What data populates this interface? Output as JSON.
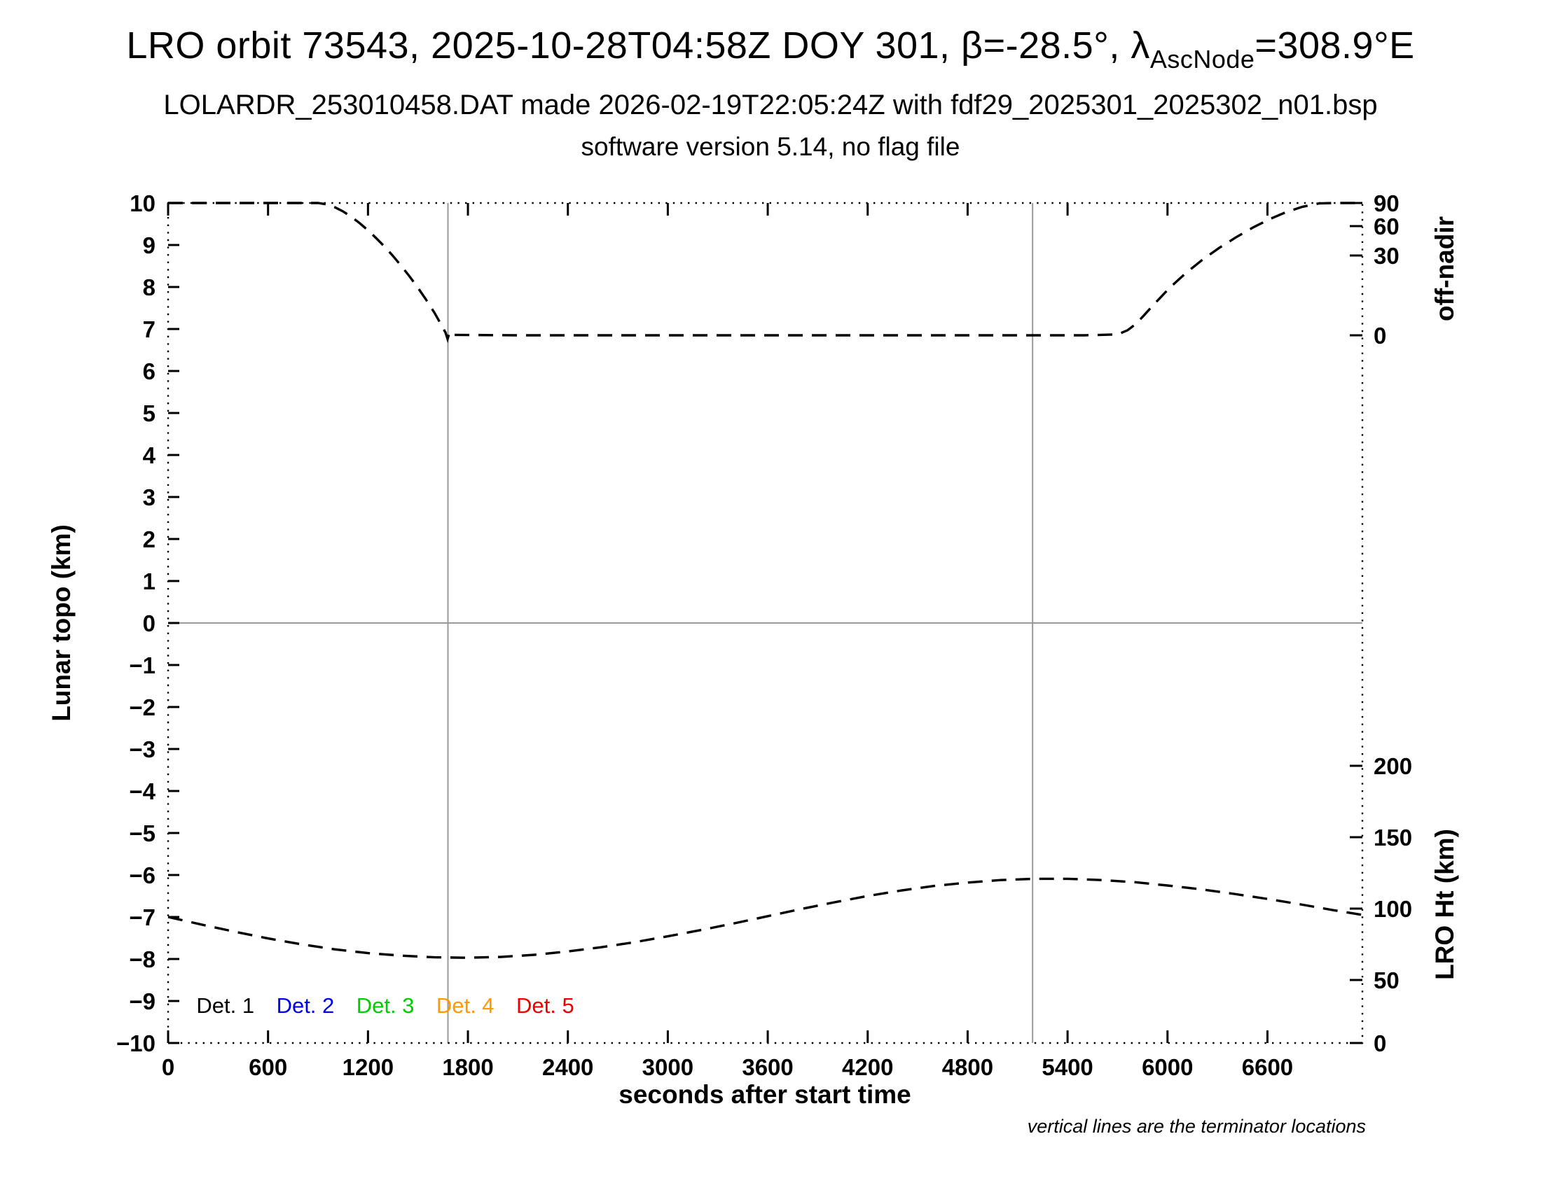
{
  "header": {
    "title_parts": {
      "prefix": "LRO orbit 73543, 2025-10-28T04:58Z DOY 301, β=-28.5°, λ",
      "subscript": "AscNode",
      "suffix": "=308.9°E"
    },
    "subtitle1": "LOLARDR_253010458.DAT made 2026-02-19T22:05:24Z with fdf29_2025301_2025302_n01.bsp",
    "subtitle2": "software version 5.14, no flag file"
  },
  "chart_data": {
    "type": "line",
    "title": "LRO orbit 73543, 2025-10-28T04:58Z DOY 301, β=-28.5°, λAscNode=308.9°E",
    "xlabel": "seconds after start time",
    "ylabel_left": "Lunar topo (km)",
    "ylabel_right_top": "off-nadir",
    "ylabel_right_bottom": "LRO Ht (km)",
    "footnote": "vertical lines are the terminator locations",
    "xlim": [
      0,
      7170
    ],
    "ylim": [
      -10,
      10
    ],
    "x_major_ticks": [
      0,
      600,
      1200,
      1800,
      2400,
      3000,
      3600,
      4200,
      4800,
      5400,
      6000,
      6600
    ],
    "y_major_ticks": [
      -10,
      -9,
      -8,
      -7,
      -6,
      -5,
      -4,
      -3,
      -2,
      -1,
      0,
      1,
      2,
      3,
      4,
      5,
      6,
      7,
      8,
      9,
      10
    ],
    "right_axis_offnadir_ticks": [
      {
        "label": "90",
        "y": 10
      },
      {
        "label": "60",
        "y": 9.45
      },
      {
        "label": "30",
        "y": 8.75
      },
      {
        "label": "0",
        "y": 6.85
      }
    ],
    "right_axis_lroht_ticks": [
      {
        "label": "200",
        "y": -3.4
      },
      {
        "label": "150",
        "y": -5.1
      },
      {
        "label": "100",
        "y": -6.8
      },
      {
        "label": "50",
        "y": -8.5
      },
      {
        "label": "0",
        "y": -10
      }
    ],
    "zero_line_y": 0,
    "terminator_lines_x": [
      1680,
      5190
    ],
    "series": [
      {
        "name": "off-nadir-angle-curve",
        "axis": "right-top (off-nadir, deg; 90 at topo 10, 0 at topo 6.85)",
        "color": "#000000",
        "style": "dashed",
        "points": [
          [
            0,
            10
          ],
          [
            300,
            10
          ],
          [
            600,
            10
          ],
          [
            900,
            10
          ],
          [
            950,
            9.97
          ],
          [
            1000,
            9.9
          ],
          [
            1050,
            9.8
          ],
          [
            1100,
            9.67
          ],
          [
            1150,
            9.52
          ],
          [
            1200,
            9.35
          ],
          [
            1250,
            9.16
          ],
          [
            1300,
            8.96
          ],
          [
            1350,
            8.74
          ],
          [
            1400,
            8.5
          ],
          [
            1450,
            8.25
          ],
          [
            1500,
            7.98
          ],
          [
            1550,
            7.69
          ],
          [
            1600,
            7.38
          ],
          [
            1640,
            7.1
          ],
          [
            1665,
            6.92
          ],
          [
            1678,
            6.76
          ],
          [
            1690,
            6.93
          ],
          [
            1710,
            6.86
          ],
          [
            2100,
            6.85
          ],
          [
            2600,
            6.85
          ],
          [
            3100,
            6.85
          ],
          [
            3600,
            6.85
          ],
          [
            4100,
            6.85
          ],
          [
            4600,
            6.85
          ],
          [
            5100,
            6.85
          ],
          [
            5500,
            6.85
          ],
          [
            5700,
            6.87
          ],
          [
            5760,
            6.97
          ],
          [
            5810,
            7.12
          ],
          [
            5860,
            7.33
          ],
          [
            5910,
            7.55
          ],
          [
            5960,
            7.76
          ],
          [
            6010,
            7.97
          ],
          [
            6110,
            8.33
          ],
          [
            6210,
            8.65
          ],
          [
            6310,
            8.93
          ],
          [
            6410,
            9.18
          ],
          [
            6510,
            9.41
          ],
          [
            6610,
            9.61
          ],
          [
            6710,
            9.78
          ],
          [
            6810,
            9.91
          ],
          [
            6910,
            9.99
          ],
          [
            7000,
            10
          ],
          [
            7170,
            10
          ]
        ]
      },
      {
        "name": "lro-height-curve",
        "axis": "right-bottom (LRO Ht, km; 0 at topo -10, 200 at topo -3.4)",
        "color": "#000000",
        "style": "dashed",
        "points": [
          [
            0,
            -7.0
          ],
          [
            200,
            -7.18
          ],
          [
            400,
            -7.35
          ],
          [
            600,
            -7.51
          ],
          [
            800,
            -7.65
          ],
          [
            1000,
            -7.77
          ],
          [
            1200,
            -7.86
          ],
          [
            1400,
            -7.92
          ],
          [
            1600,
            -7.96
          ],
          [
            1800,
            -7.97
          ],
          [
            2000,
            -7.95
          ],
          [
            2200,
            -7.9
          ],
          [
            2400,
            -7.82
          ],
          [
            2600,
            -7.72
          ],
          [
            2800,
            -7.6
          ],
          [
            3000,
            -7.46
          ],
          [
            3200,
            -7.31
          ],
          [
            3400,
            -7.15
          ],
          [
            3600,
            -6.98
          ],
          [
            3800,
            -6.81
          ],
          [
            4000,
            -6.65
          ],
          [
            4200,
            -6.5
          ],
          [
            4400,
            -6.37
          ],
          [
            4600,
            -6.26
          ],
          [
            4800,
            -6.18
          ],
          [
            5000,
            -6.12
          ],
          [
            5200,
            -6.09
          ],
          [
            5400,
            -6.09
          ],
          [
            5600,
            -6.12
          ],
          [
            5800,
            -6.17
          ],
          [
            6000,
            -6.25
          ],
          [
            6200,
            -6.34
          ],
          [
            6400,
            -6.45
          ],
          [
            6600,
            -6.57
          ],
          [
            6800,
            -6.7
          ],
          [
            7000,
            -6.84
          ],
          [
            7170,
            -6.95
          ]
        ]
      }
    ],
    "legend": {
      "y": -9.1,
      "x_positions": [
        170,
        650,
        1130,
        1610,
        2090
      ],
      "items": [
        {
          "label": "Det. 1",
          "color": "#000000"
        },
        {
          "label": "Det. 2",
          "color": "#0000ee"
        },
        {
          "label": "Det. 3",
          "color": "#00cc00"
        },
        {
          "label": "Det. 4",
          "color": "#ff9900"
        },
        {
          "label": "Det. 5",
          "color": "#ee0000"
        }
      ]
    },
    "grid": "reference lines only (y=0 and two terminator verticals)",
    "legend_position": "inside bottom-left"
  }
}
